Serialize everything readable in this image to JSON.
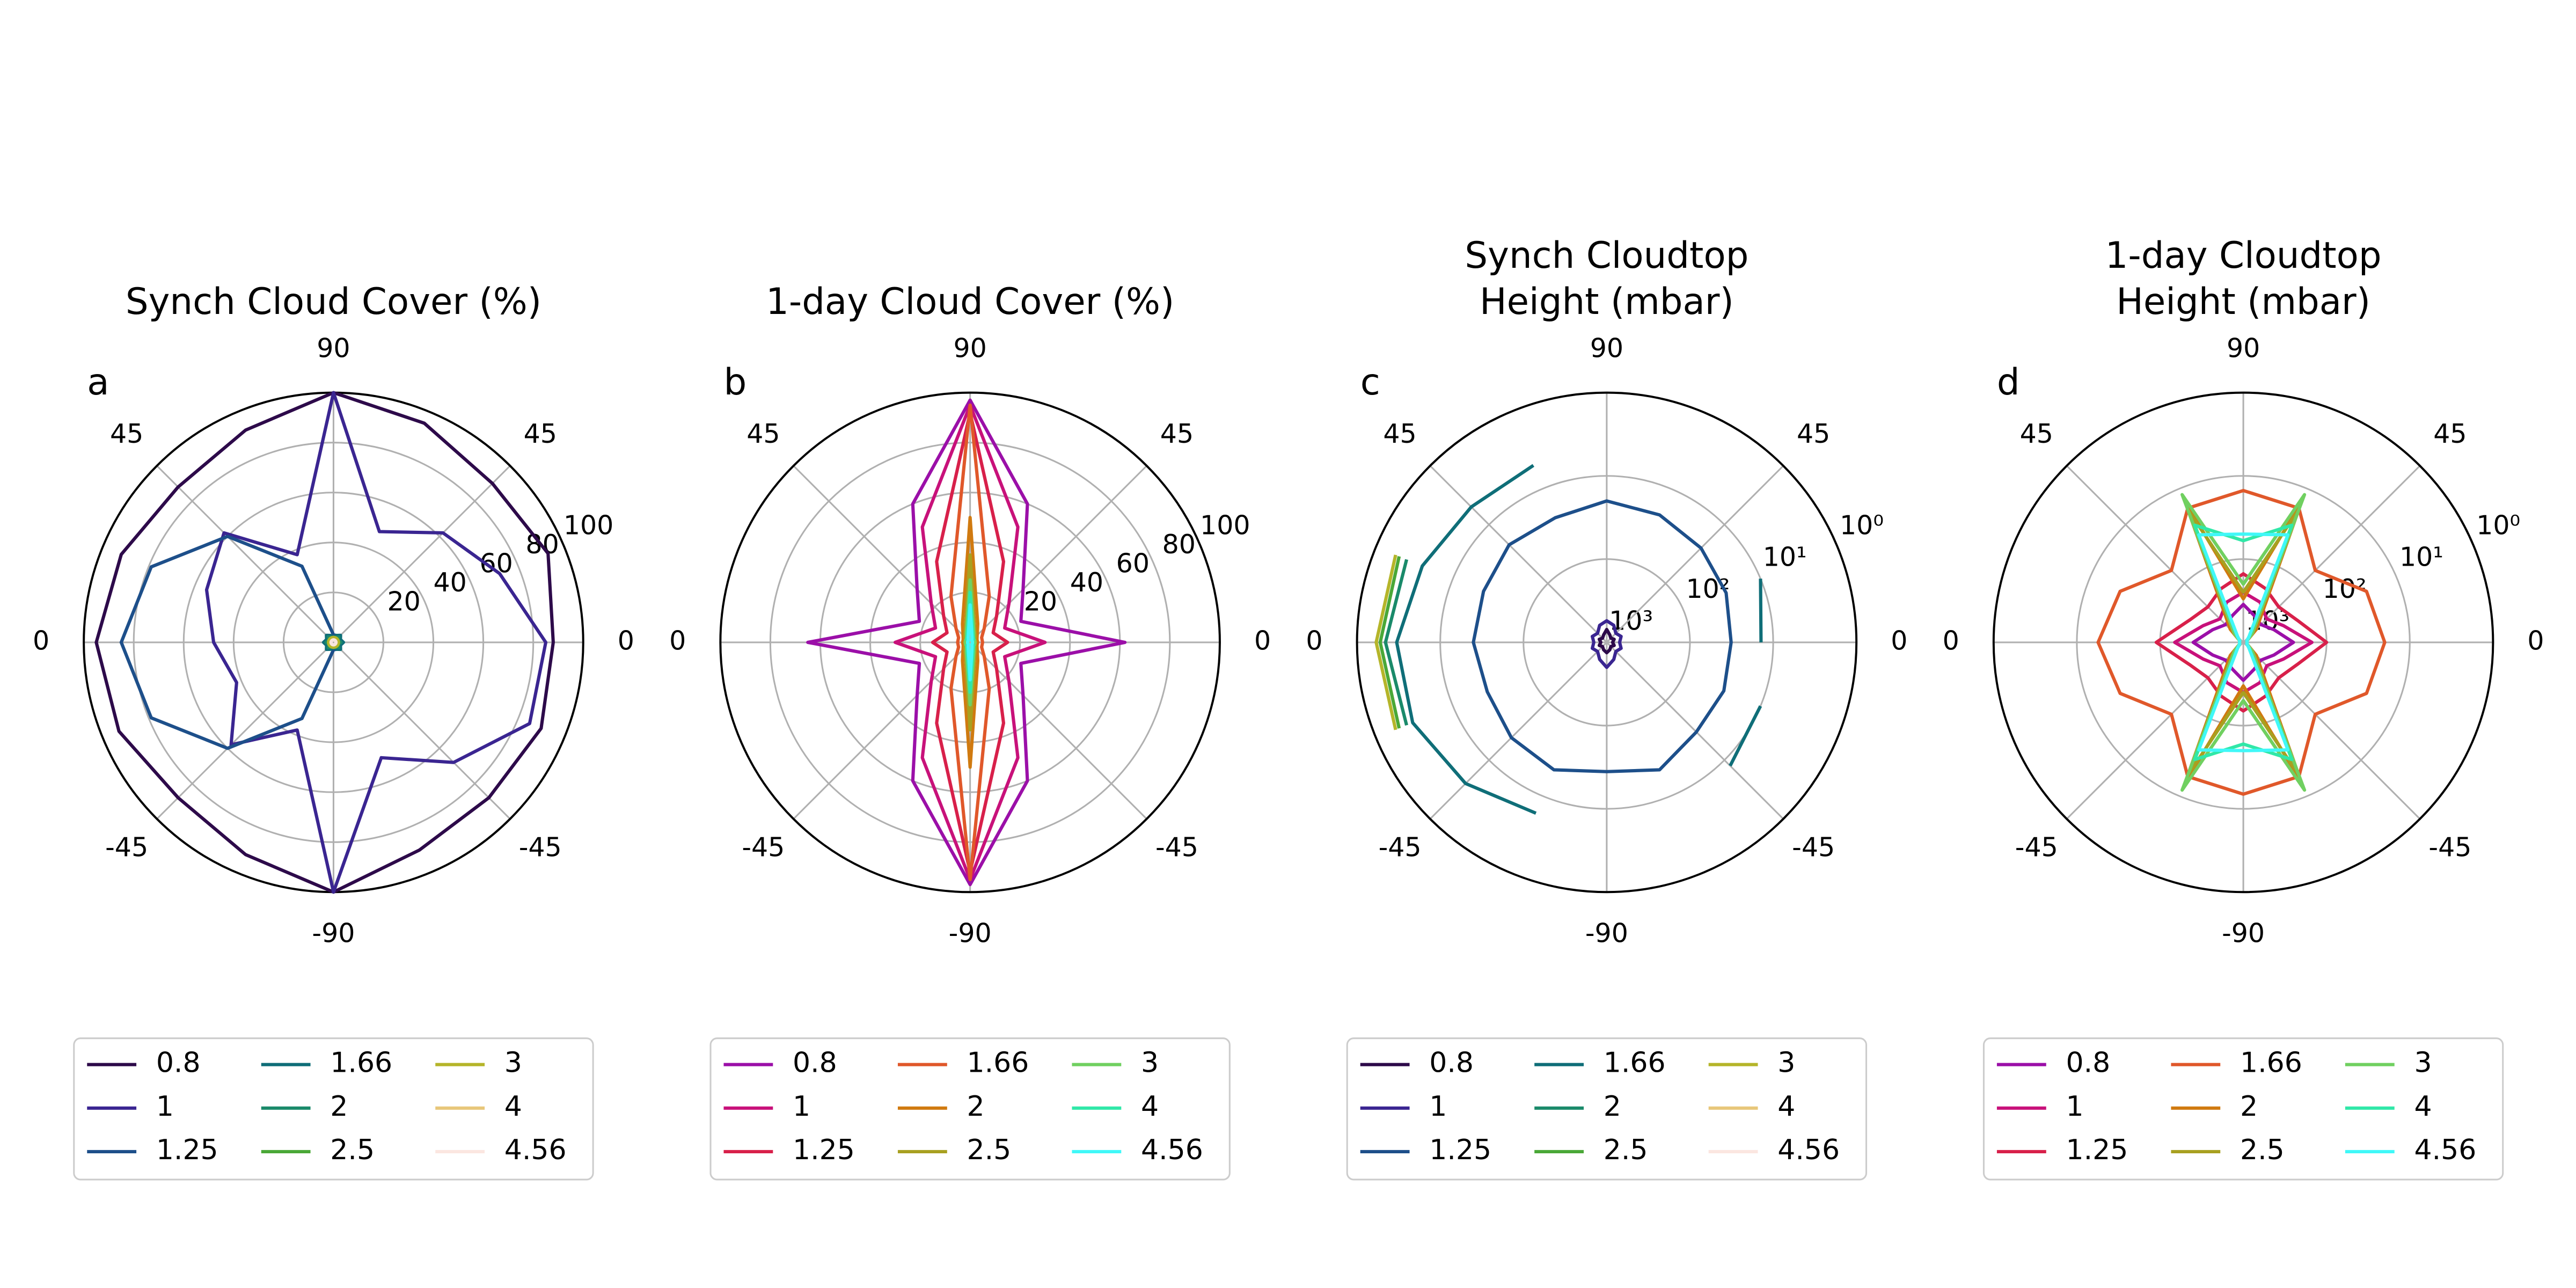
{
  "chart_data": [
    {
      "type": "polar",
      "label": "a",
      "title": [
        "Synch Cloud Cover (%)"
      ],
      "theta": [
        0,
        22.5,
        45,
        67.5,
        90,
        112.5,
        135,
        157.5,
        180,
        202.5,
        225,
        247.5,
        270,
        292.5,
        315,
        337.5
      ],
      "thetaticks": [
        0,
        45,
        90,
        {
          "value": 135,
          "label": "45"
        },
        {
          "value": 180,
          "label": "0"
        },
        {
          "value": 225,
          "label": "-45"
        },
        {
          "value": 270,
          "label": "-90"
        },
        {
          "value": 315,
          "label": "-45"
        }
      ],
      "rlim": [
        0,
        100
      ],
      "rticks": [
        20,
        40,
        60,
        80,
        100
      ],
      "rscale": "linear",
      "grid": true,
      "series": [
        {
          "name": "0.8",
          "color": "#2d0a4a",
          "values": [
            88,
            93,
            90,
            95,
            100,
            92,
            88,
            92,
            95,
            93,
            88,
            92,
            100,
            90,
            88,
            90
          ]
        },
        {
          "name": "1",
          "color": "#3a2591",
          "values": [
            85,
            72,
            62,
            48,
            100,
            38,
            62,
            55,
            48,
            42,
            58,
            38,
            100,
            50,
            68,
            85
          ]
        },
        {
          "name": "1.25",
          "color": "#1d4f8a",
          "values": [
            3,
            3,
            3,
            3,
            3,
            33,
            60,
            79,
            85,
            79,
            60,
            33,
            3,
            3,
            3,
            3
          ]
        },
        {
          "name": "1.66",
          "color": "#0f6e78",
          "values": [
            4,
            3,
            4,
            3,
            2,
            3,
            4,
            3,
            4,
            3,
            4,
            3,
            2,
            3,
            4,
            3
          ]
        },
        {
          "name": "2",
          "color": "#1a8a6a",
          "values": [
            3,
            2,
            3,
            2,
            2,
            2,
            3,
            2,
            3,
            2,
            3,
            2,
            2,
            2,
            3,
            2
          ]
        },
        {
          "name": "2.5",
          "color": "#4aa837",
          "values": [
            2,
            2,
            2,
            2,
            2,
            2,
            2,
            2,
            2,
            2,
            2,
            2,
            2,
            2,
            2,
            2
          ]
        },
        {
          "name": "3",
          "color": "#b5b52a",
          "values": [
            2,
            2,
            2,
            2,
            2,
            2,
            2,
            2,
            2,
            2,
            2,
            2,
            2,
            2,
            2,
            2
          ]
        },
        {
          "name": "4",
          "color": "#e8c77a",
          "values": [
            1,
            1,
            1,
            1,
            1,
            1,
            1,
            1,
            1,
            1,
            1,
            1,
            1,
            1,
            1,
            1
          ]
        },
        {
          "name": "4.56",
          "color": "#fbe6e0",
          "values": [
            1,
            1,
            1,
            1,
            1,
            1,
            1,
            1,
            1,
            1,
            1,
            1,
            1,
            1,
            1,
            1
          ]
        }
      ]
    },
    {
      "type": "polar",
      "label": "b",
      "title": [
        "1-day Cloud Cover (%)"
      ],
      "theta": [
        0,
        22.5,
        45,
        67.5,
        90,
        112.5,
        135,
        157.5,
        180,
        202.5,
        225,
        247.5,
        270,
        292.5,
        315,
        337.5
      ],
      "thetaticks": [
        0,
        45,
        90,
        {
          "value": 135,
          "label": "45"
        },
        {
          "value": 180,
          "label": "0"
        },
        {
          "value": 225,
          "label": "-45"
        },
        {
          "value": 270,
          "label": "-90"
        },
        {
          "value": 315,
          "label": "-45"
        }
      ],
      "rlim": [
        0,
        100
      ],
      "rticks": [
        20,
        40,
        60,
        80,
        100
      ],
      "rscale": "linear",
      "grid": true,
      "series": [
        {
          "name": "0.8",
          "color": "#9b0fa8",
          "values": [
            62,
            22,
            30,
            60,
            97,
            60,
            30,
            22,
            65,
            22,
            30,
            60,
            97,
            60,
            30,
            22
          ]
        },
        {
          "name": "1",
          "color": "#c8117a",
          "values": [
            30,
            15,
            22,
            50,
            95,
            50,
            22,
            15,
            30,
            15,
            22,
            50,
            95,
            50,
            22,
            15
          ]
        },
        {
          "name": "1.25",
          "color": "#d8204a",
          "values": [
            15,
            10,
            15,
            35,
            92,
            35,
            15,
            10,
            15,
            10,
            15,
            35,
            92,
            35,
            15,
            10
          ]
        },
        {
          "name": "1.66",
          "color": "#e0582a",
          "values": [
            5,
            5,
            8,
            20,
            95,
            20,
            8,
            5,
            5,
            5,
            8,
            20,
            95,
            20,
            8,
            5
          ]
        },
        {
          "name": "2",
          "color": "#d07a10",
          "values": [
            3,
            3,
            4,
            8,
            50,
            8,
            4,
            3,
            3,
            3,
            4,
            8,
            50,
            8,
            4,
            3
          ]
        },
        {
          "name": "2.5",
          "color": "#a8a020",
          "values": [
            2,
            2,
            3,
            5,
            35,
            5,
            3,
            2,
            2,
            2,
            3,
            5,
            35,
            5,
            3,
            2
          ]
        },
        {
          "name": "3",
          "color": "#70d060",
          "values": [
            2,
            2,
            2,
            4,
            25,
            4,
            2,
            2,
            2,
            2,
            2,
            4,
            25,
            4,
            2,
            2
          ]
        },
        {
          "name": "4",
          "color": "#30e8a8",
          "values": [
            1,
            1,
            2,
            3,
            20,
            3,
            2,
            1,
            1,
            1,
            2,
            3,
            20,
            3,
            2,
            1
          ]
        },
        {
          "name": "4.56",
          "color": "#40f8f8",
          "values": [
            1,
            1,
            1,
            2,
            15,
            2,
            1,
            1,
            1,
            1,
            1,
            2,
            15,
            2,
            1,
            1
          ]
        }
      ]
    },
    {
      "type": "polar",
      "label": "c",
      "title": [
        "Synch Cloudtop",
        "Height (mbar)"
      ],
      "theta": [
        0,
        22.5,
        45,
        67.5,
        90,
        112.5,
        135,
        157.5,
        180,
        202.5,
        225,
        247.5,
        270,
        292.5,
        315,
        337.5
      ],
      "thetaticks": [
        0,
        45,
        90,
        {
          "value": 135,
          "label": "45"
        },
        {
          "value": 180,
          "label": "0"
        },
        {
          "value": 225,
          "label": "-45"
        },
        {
          "value": 270,
          "label": "-90"
        },
        {
          "value": 315,
          "label": "-45"
        }
      ],
      "rlim": [
        1000,
        1
      ],
      "rticks": [
        {
          "value": 1000,
          "label": "10³"
        },
        {
          "value": 100,
          "label": "10²"
        },
        {
          "value": 10,
          "label": "10¹"
        },
        {
          "value": 1,
          "label": "10⁰"
        }
      ],
      "rscale": "log",
      "grid": true,
      "series": [
        {
          "name": "0.8",
          "color": "#2d0a4a",
          "values": [
            850,
            800,
            850,
            800,
            700,
            800,
            850,
            800,
            850,
            800,
            850,
            800,
            750,
            800,
            850,
            800
          ]
        },
        {
          "name": "1",
          "color": "#3a2591",
          "values": [
            700,
            650,
            700,
            600,
            550,
            600,
            700,
            650,
            700,
            650,
            700,
            600,
            500,
            600,
            700,
            650
          ]
        },
        {
          "name": "1.25",
          "color": "#1d4f8a",
          "values": [
            32,
            28,
            25,
            22,
            20,
            24,
            22,
            25,
            25,
            28,
            24,
            22,
            28,
            22,
            30,
            30
          ]
        },
        {
          "name": "1.66",
          "color": "#0f6e78",
          "values": [
            14,
            10,
            null,
            null,
            null,
            5,
            5,
            4,
            3,
            3,
            4,
            6,
            null,
            null,
            8,
            10
          ]
        },
        {
          "name": "2",
          "color": "#1a8a6a",
          "values": [
            null,
            null,
            null,
            null,
            null,
            null,
            null,
            2.5,
            2.2,
            2.5,
            null,
            null,
            null,
            null,
            null,
            null
          ]
        },
        {
          "name": "2.5",
          "color": "#4aa837",
          "values": [
            null,
            null,
            null,
            null,
            null,
            null,
            null,
            2,
            1.9,
            2,
            null,
            null,
            null,
            null,
            null,
            null
          ]
        },
        {
          "name": "3",
          "color": "#b5b52a",
          "values": [
            null,
            null,
            null,
            null,
            null,
            null,
            null,
            1.8,
            1.7,
            1.8,
            null,
            null,
            null,
            null,
            null,
            null
          ]
        },
        {
          "name": "4",
          "color": "#e8c77a",
          "values": [
            null,
            null,
            null,
            null,
            null,
            null,
            null,
            null,
            null,
            null,
            null,
            null,
            null,
            null,
            null,
            null
          ]
        },
        {
          "name": "4.56",
          "color": "#fbe6e0",
          "values": [
            null,
            null,
            null,
            null,
            null,
            null,
            null,
            null,
            null,
            null,
            null,
            null,
            null,
            null,
            null,
            null
          ]
        }
      ]
    },
    {
      "type": "polar",
      "label": "d",
      "title": [
        "1-day Cloudtop",
        "Height (mbar)"
      ],
      "theta": [
        0,
        22.5,
        45,
        67.5,
        90,
        112.5,
        135,
        157.5,
        180,
        202.5,
        225,
        247.5,
        270,
        292.5,
        315,
        337.5
      ],
      "thetaticks": [
        0,
        45,
        90,
        {
          "value": 135,
          "label": "45"
        },
        {
          "value": 180,
          "label": "0"
        },
        {
          "value": 225,
          "label": "-45"
        },
        {
          "value": 270,
          "label": "-90"
        },
        {
          "value": 315,
          "label": "-45"
        }
      ],
      "rlim": [
        1000,
        1
      ],
      "rticks": [
        {
          "value": 1000,
          "label": "10³"
        },
        {
          "value": 100,
          "label": "10²"
        },
        {
          "value": 10,
          "label": "10¹"
        },
        {
          "value": 1,
          "label": "10⁰"
        }
      ],
      "rscale": "log",
      "grid": true,
      "series": [
        {
          "name": "0.8",
          "color": "#9b0fa8",
          "values": [
            250,
            400,
            500,
            450,
            350,
            450,
            500,
            400,
            250,
            400,
            500,
            450,
            350,
            450,
            500,
            400
          ]
        },
        {
          "name": "1",
          "color": "#c8117a",
          "values": [
            150,
            300,
            400,
            300,
            250,
            300,
            400,
            300,
            150,
            300,
            400,
            300,
            250,
            300,
            400,
            300
          ]
        },
        {
          "name": "1.25",
          "color": "#d8204a",
          "values": [
            100,
            200,
            250,
            200,
            150,
            200,
            250,
            200,
            90,
            200,
            250,
            200,
            150,
            200,
            250,
            200
          ]
        },
        {
          "name": "1.66",
          "color": "#e0582a",
          "values": [
            20,
            25,
            60,
            18,
            15,
            18,
            60,
            25,
            18,
            25,
            60,
            18,
            15,
            18,
            60,
            25
          ]
        },
        {
          "name": "2",
          "color": "#d07a10",
          "values": [
            900,
            900,
            600,
            15,
            300,
            15,
            600,
            900,
            900,
            900,
            600,
            15,
            300,
            15,
            600,
            900
          ]
        },
        {
          "name": "2.5",
          "color": "#a8a020",
          "values": [
            900,
            900,
            700,
            20,
            250,
            20,
            700,
            900,
            900,
            900,
            700,
            20,
            250,
            20,
            700,
            900
          ]
        },
        {
          "name": "3",
          "color": "#70d060",
          "values": [
            900,
            900,
            700,
            12,
            200,
            12,
            700,
            900,
            900,
            900,
            700,
            12,
            200,
            12,
            700,
            900
          ]
        },
        {
          "name": "4",
          "color": "#30e8a8",
          "values": [
            900,
            900,
            800,
            30,
            60,
            30,
            800,
            900,
            900,
            900,
            800,
            30,
            60,
            30,
            800,
            900
          ]
        },
        {
          "name": "4.56",
          "color": "#40f8f8",
          "values": [
            900,
            900,
            800,
            40,
            50,
            40,
            800,
            900,
            900,
            900,
            800,
            40,
            50,
            40,
            800,
            900
          ]
        }
      ]
    }
  ]
}
